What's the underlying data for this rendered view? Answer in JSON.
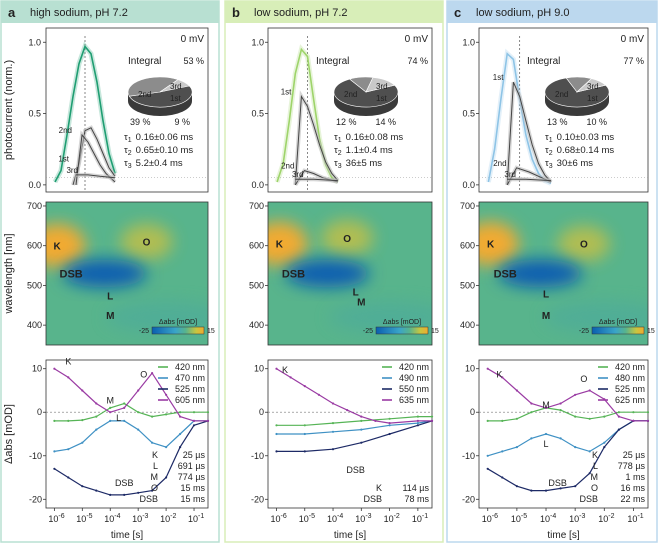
{
  "colors": {
    "panel_a_header": "#b8e0d2",
    "panel_b_header": "#d8eeb8",
    "panel_c_header": "#bcd8ee",
    "trace_a": "#1f9e72",
    "trace_b": "#9ed46a",
    "trace_c": "#8ec4e6",
    "map_blue": "#0a5fb0",
    "map_green": "#58b48c",
    "map_orange": "#f1aa30",
    "pie_dark": "#4f4f4f",
    "pie_mid": "#8c8c8c",
    "pie_light": "#c9c9c9"
  },
  "shared": {
    "top_ylabel": "photocurrent (norm.)",
    "mid_ylabel": "wavelength [nm]",
    "bot_ylabel": "Δabs [mOD]",
    "xlabel": "time [s]",
    "top_yticks": [
      "0.0",
      "0.5",
      "1.0"
    ],
    "mid_yticks": [
      "400",
      "500",
      "600",
      "700"
    ],
    "bot_yticks": [
      "-20",
      "-10",
      "0",
      "10"
    ],
    "xtick_base": "10",
    "xtick_exps": [
      "-6",
      "-5",
      "-4",
      "-3",
      "-2",
      "-1"
    ],
    "voltage": "0 mV",
    "integral_label": "Integral",
    "colorbar_title": "Δabs [mOD]",
    "colorbar_min": "-25",
    "colorbar_max": "15",
    "pie_labels": {
      "first": "1st",
      "second": "2nd",
      "third": "3rd"
    }
  },
  "panels": [
    {
      "letter": "a",
      "title": "high sodium, pH 7.2",
      "integral_pct": "53 %",
      "pct_second": "39 %",
      "pct_first": "9 %",
      "pie": {
        "third": 0.53,
        "second": 0.39,
        "first": 0.09
      },
      "tau_lines": [
        {
          "sym": "τ",
          "sub": "1",
          "val": "0.16±0.06 ms"
        },
        {
          "sym": "τ",
          "sub": "2",
          "val": "0.65±0.10 ms"
        },
        {
          "sym": "τ",
          "sub": "3",
          "val": "5.2±0.4 ms"
        }
      ],
      "intermediates": [
        {
          "label": "K",
          "lambda": 600,
          "logt": -5.9
        },
        {
          "label": "O",
          "lambda": 610,
          "logt": -2.7
        },
        {
          "label": "DSB",
          "lambda": 530,
          "logt": -5.4
        },
        {
          "label": "L",
          "lambda": 475,
          "logt": -4.0
        },
        {
          "label": "M",
          "lambda": 425,
          "logt": -4.0
        }
      ],
      "legend": [
        {
          "label": "420 nm",
          "color": "#56b456"
        },
        {
          "label": "470 nm",
          "color": "#3f91c4"
        },
        {
          "label": "525 nm",
          "color": "#1d2a66"
        },
        {
          "label": "605 nm",
          "color": "#9a3ba3"
        }
      ],
      "lifetimes": [
        {
          "name": "K",
          "value": "25 µs",
          "color": "#9a3ba3"
        },
        {
          "name": "L",
          "value": "691 µs",
          "color": "#3f91c4"
        },
        {
          "name": "M",
          "value": "774 µs",
          "color": "#56b456"
        },
        {
          "name": "O",
          "value": "15 ms",
          "color": "#9a3ba3"
        },
        {
          "name": "DSB",
          "value": "15 ms",
          "color": "#1d2a66"
        }
      ],
      "trace_labels": [
        {
          "label": "K",
          "x": -5.5,
          "y": 11
        },
        {
          "label": "M",
          "x": -4.0,
          "y": 2
        },
        {
          "label": "L",
          "x": -3.7,
          "y": -2
        },
        {
          "label": "O",
          "x": -2.8,
          "y": 8
        },
        {
          "label": "DSB",
          "x": -3.5,
          "y": -17
        }
      ]
    },
    {
      "letter": "b",
      "title": "low sodium, pH 7.2",
      "integral_pct": "74 %",
      "pct_second": "12 %",
      "pct_first": "14 %",
      "pie": {
        "third": 0.74,
        "second": 0.12,
        "first": 0.14
      },
      "tau_lines": [
        {
          "sym": "τ",
          "sub": "1",
          "val": "0.16±0.08 ms"
        },
        {
          "sym": "τ",
          "sub": "2",
          "val": "1.1±0.4 ms"
        },
        {
          "sym": "τ",
          "sub": "3",
          "val": "36±5 ms"
        }
      ],
      "intermediates": [
        {
          "label": "K",
          "lambda": 605,
          "logt": -5.9
        },
        {
          "label": "O",
          "lambda": 620,
          "logt": -3.5
        },
        {
          "label": "DSB",
          "lambda": 530,
          "logt": -5.4
        },
        {
          "label": "L",
          "lambda": 485,
          "logt": -3.2
        },
        {
          "label": "M",
          "lambda": 460,
          "logt": -3.0
        }
      ],
      "legend": [
        {
          "label": "420 nm",
          "color": "#56b456"
        },
        {
          "label": "490 nm",
          "color": "#3f91c4"
        },
        {
          "label": "550 nm",
          "color": "#1d2a66"
        },
        {
          "label": "635 nm",
          "color": "#9a3ba3"
        }
      ],
      "lifetimes": [
        {
          "name": "K",
          "value": "114 µs",
          "color": "#9a3ba3"
        },
        {
          "name": "DSB",
          "value": "78 ms",
          "color": "#1d2a66"
        }
      ],
      "trace_labels": [
        {
          "label": "K",
          "x": -5.7,
          "y": 9
        },
        {
          "label": "DSB",
          "x": -3.2,
          "y": -14
        }
      ]
    },
    {
      "letter": "c",
      "title": "low sodium, pH 9.0",
      "integral_pct": "77 %",
      "pct_second": "13 %",
      "pct_first": "10 %",
      "pie": {
        "third": 0.77,
        "second": 0.13,
        "first": 0.1
      },
      "tau_lines": [
        {
          "sym": "τ",
          "sub": "1",
          "val": "0.10±0.03 ms"
        },
        {
          "sym": "τ",
          "sub": "2",
          "val": "0.68±0.14 ms"
        },
        {
          "sym": "τ",
          "sub": "3",
          "val": "30±6 ms"
        }
      ],
      "intermediates": [
        {
          "label": "K",
          "lambda": 605,
          "logt": -5.9
        },
        {
          "label": "O",
          "lambda": 605,
          "logt": -2.7
        },
        {
          "label": "DSB",
          "lambda": 530,
          "logt": -5.4
        },
        {
          "label": "L",
          "lambda": 480,
          "logt": -4.0
        },
        {
          "label": "M",
          "lambda": 425,
          "logt": -4.0
        }
      ],
      "legend": [
        {
          "label": "420 nm",
          "color": "#56b456"
        },
        {
          "label": "480 nm",
          "color": "#3f91c4"
        },
        {
          "label": "525 nm",
          "color": "#1d2a66"
        },
        {
          "label": "625 nm",
          "color": "#9a3ba3"
        }
      ],
      "lifetimes": [
        {
          "name": "K",
          "value": "25 µs",
          "color": "#9a3ba3"
        },
        {
          "name": "L",
          "value": "778 µs",
          "color": "#3f91c4"
        },
        {
          "name": "M",
          "value": "1 ms",
          "color": "#56b456"
        },
        {
          "name": "O",
          "value": "16 ms",
          "color": "#9a3ba3"
        },
        {
          "name": "DSB",
          "value": "22 ms",
          "color": "#1d2a66"
        }
      ],
      "trace_labels": [
        {
          "label": "K",
          "x": -5.6,
          "y": 8
        },
        {
          "label": "M",
          "x": -4.0,
          "y": 1
        },
        {
          "label": "L",
          "x": -4.0,
          "y": -8
        },
        {
          "label": "O",
          "x": -2.7,
          "y": 7
        },
        {
          "label": "DSB",
          "x": -3.6,
          "y": -17
        }
      ]
    }
  ],
  "chart_data": [
    {
      "type": "line",
      "panel": "a",
      "title": "high sodium, pH 7.2",
      "xlabel": "",
      "ylabel": "photocurrent (norm.)",
      "ylim": [
        -0.05,
        1.1
      ],
      "series": [
        {
          "name": "",
          "x": [
            -0.5,
            -0.3,
            -0.1,
            0.1,
            0.3,
            0.5,
            0.7,
            0.9,
            1.1,
            1.3,
            1.5
          ],
          "y": [
            0.02,
            0.1,
            0.35,
            0.62,
            0.85,
            0.97,
            0.92,
            0.72,
            0.45,
            0.22,
            0.08
          ]
        },
        {
          "name": "2nd",
          "x": [
            0.1,
            0.3,
            0.5,
            0.7,
            0.9,
            1.1,
            1.3,
            1.5
          ],
          "y": [
            0,
            0.15,
            0.38,
            0.4,
            0.32,
            0.22,
            0.12,
            0.06
          ]
        },
        {
          "name": "1st",
          "x": [
            0.2,
            0.4,
            0.6,
            0.8,
            1.0,
            1.2,
            1.4,
            1.5
          ],
          "y": [
            0,
            0.35,
            0.3,
            0.22,
            0.14,
            0.08,
            0.04,
            0.02
          ]
        },
        {
          "name": "3rd",
          "x": [
            0.2,
            0.6,
            1.0,
            1.5
          ],
          "y": [
            0.07,
            0.07,
            0.06,
            0.05
          ]
        }
      ]
    },
    {
      "type": "line",
      "panel": "b",
      "title": "low sodium, pH 7.2",
      "xlabel": "",
      "ylabel": "photocurrent (norm.)",
      "ylim": [
        -0.05,
        1.1
      ],
      "series": [
        {
          "name": "",
          "x": [
            -0.5,
            -0.3,
            -0.1,
            0.1,
            0.3,
            0.5,
            0.7,
            0.9,
            1.1,
            1.3,
            1.5
          ],
          "y": [
            0.02,
            0.15,
            0.45,
            0.78,
            0.95,
            0.9,
            0.6,
            0.32,
            0.14,
            0.05,
            0.02
          ]
        },
        {
          "name": "1st",
          "x": [
            0.1,
            0.3,
            0.5,
            0.7,
            0.9,
            1.1,
            1.3,
            1.5
          ],
          "y": [
            0,
            0.62,
            0.55,
            0.42,
            0.28,
            0.16,
            0.08,
            0.03
          ]
        },
        {
          "name": "2nd",
          "x": [
            0.1,
            0.4,
            0.7,
            1.0,
            1.5
          ],
          "y": [
            0,
            0.1,
            0.08,
            0.05,
            0.02
          ]
        },
        {
          "name": "3rd",
          "x": [
            0.1,
            0.7,
            1.5
          ],
          "y": [
            0.04,
            0.04,
            0.03
          ]
        }
      ]
    },
    {
      "type": "line",
      "panel": "c",
      "title": "low sodium, pH 9.0",
      "xlabel": "",
      "ylabel": "photocurrent (norm.)",
      "ylim": [
        -0.05,
        1.1
      ],
      "series": [
        {
          "name": "",
          "x": [
            -0.5,
            -0.3,
            -0.1,
            0.1,
            0.3,
            0.5,
            0.7,
            0.9,
            1.1,
            1.3,
            1.5
          ],
          "y": [
            0.02,
            0.25,
            0.6,
            0.92,
            0.88,
            0.6,
            0.35,
            0.18,
            0.08,
            0.03,
            0.01
          ]
        },
        {
          "name": "1st",
          "x": [
            0.1,
            0.3,
            0.5,
            0.7,
            0.9,
            1.1,
            1.3,
            1.5
          ],
          "y": [
            0,
            0.72,
            0.62,
            0.45,
            0.28,
            0.15,
            0.07,
            0.02
          ]
        },
        {
          "name": "2nd",
          "x": [
            0.1,
            0.4,
            0.8,
            1.2,
            1.5
          ],
          "y": [
            0,
            0.12,
            0.09,
            0.05,
            0.02
          ]
        },
        {
          "name": "3rd",
          "x": [
            0.1,
            0.7,
            1.5
          ],
          "y": [
            0.04,
            0.04,
            0.03
          ]
        }
      ]
    },
    {
      "type": "heatmap",
      "panel": "a",
      "ylabel": "wavelength [nm]",
      "ylim": [
        350,
        710
      ],
      "xlim": [
        -6.3,
        -0.5
      ],
      "colorbar": {
        "min": -25,
        "max": 15
      }
    },
    {
      "type": "heatmap",
      "panel": "b",
      "ylabel": "wavelength [nm]",
      "ylim": [
        350,
        710
      ],
      "xlim": [
        -6.3,
        -0.5
      ],
      "colorbar": {
        "min": -25,
        "max": 15
      }
    },
    {
      "type": "heatmap",
      "panel": "c",
      "ylabel": "wavelength [nm]",
      "ylim": [
        350,
        710
      ],
      "xlim": [
        -6.3,
        -0.5
      ],
      "colorbar": {
        "min": -25,
        "max": 15
      }
    },
    {
      "type": "scatter",
      "panel": "a",
      "xlabel": "time [s]",
      "ylabel": "Δabs [mOD]",
      "xlim": [
        -6.3,
        -0.5
      ],
      "ylim": [
        -22,
        12
      ],
      "series": [
        {
          "name": "420 nm",
          "x": [
            -6,
            -5.5,
            -5,
            -4.5,
            -4,
            -3.5,
            -3,
            -2.5,
            -2,
            -1.5,
            -1,
            -0.5
          ],
          "y": [
            -2,
            -2,
            -1.8,
            -1,
            1,
            2,
            0,
            -1,
            -0.5,
            0,
            0,
            0
          ]
        },
        {
          "name": "470 nm",
          "x": [
            -6,
            -5.5,
            -5,
            -4.5,
            -4,
            -3.5,
            -3,
            -2.5,
            -2,
            -1.5,
            -1,
            -0.5
          ],
          "y": [
            -9,
            -8.5,
            -7,
            -4,
            -2,
            -2,
            -4,
            -7,
            -8,
            -5,
            -2,
            -2
          ]
        },
        {
          "name": "525 nm",
          "x": [
            -6,
            -5.5,
            -5,
            -4.5,
            -4,
            -3.5,
            -3,
            -2.5,
            -2,
            -1.5,
            -1,
            -0.5
          ],
          "y": [
            -13,
            -15,
            -17,
            -18,
            -19,
            -19,
            -18.5,
            -18,
            -15,
            -8,
            -3,
            -2
          ]
        },
        {
          "name": "605 nm",
          "x": [
            -6,
            -5.5,
            -5,
            -4.5,
            -4,
            -3.5,
            -3,
            -2.5,
            -2,
            -1.5,
            -1,
            -0.5
          ],
          "y": [
            10,
            8,
            5,
            2,
            0,
            1,
            5,
            9,
            4,
            -1,
            -2,
            -2
          ]
        }
      ]
    },
    {
      "type": "scatter",
      "panel": "b",
      "xlabel": "time [s]",
      "ylabel": "Δabs [mOD]",
      "xlim": [
        -6.3,
        -0.5
      ],
      "ylim": [
        -22,
        12
      ],
      "series": [
        {
          "name": "420 nm",
          "x": [
            -6,
            -5,
            -4,
            -3,
            -2,
            -1,
            -0.5
          ],
          "y": [
            -3,
            -3,
            -2.5,
            -2,
            -1.5,
            -1,
            -1
          ]
        },
        {
          "name": "490 nm",
          "x": [
            -6,
            -5,
            -4,
            -3,
            -2,
            -1,
            -0.5
          ],
          "y": [
            -5,
            -5,
            -4.5,
            -4,
            -3,
            -2.5,
            -2
          ]
        },
        {
          "name": "550 nm",
          "x": [
            -6,
            -5,
            -4,
            -3,
            -2,
            -1,
            -0.5
          ],
          "y": [
            -9,
            -9,
            -8.5,
            -7,
            -5,
            -3,
            -2
          ]
        },
        {
          "name": "635 nm",
          "x": [
            -6,
            -5.5,
            -5,
            -4.5,
            -4,
            -3.5,
            -3,
            -2.5,
            -2,
            -1,
            -0.5
          ],
          "y": [
            10,
            8,
            6,
            4,
            2,
            0.5,
            -1,
            -2,
            -2.5,
            -2,
            -2
          ]
        }
      ]
    },
    {
      "type": "scatter",
      "panel": "c",
      "xlabel": "time [s]",
      "ylabel": "Δabs [mOD]",
      "xlim": [
        -6.3,
        -0.5
      ],
      "ylim": [
        -22,
        12
      ],
      "series": [
        {
          "name": "420 nm",
          "x": [
            -6,
            -5.5,
            -5,
            -4.5,
            -4,
            -3.5,
            -3,
            -2.5,
            -2,
            -1.5,
            -1,
            -0.5
          ],
          "y": [
            -2,
            -2,
            -1.5,
            0,
            1,
            0.5,
            -1,
            -1.5,
            -1,
            0,
            0,
            0
          ]
        },
        {
          "name": "480 nm",
          "x": [
            -6,
            -5.5,
            -5,
            -4.5,
            -4,
            -3.5,
            -3,
            -2.5,
            -2,
            -1.5,
            -1,
            -0.5
          ],
          "y": [
            -10,
            -9,
            -8,
            -6,
            -5,
            -6,
            -8,
            -9,
            -7,
            -4,
            -2,
            -2
          ]
        },
        {
          "name": "525 nm",
          "x": [
            -6,
            -5.5,
            -5,
            -4.5,
            -4,
            -3.5,
            -3,
            -2.5,
            -2,
            -1.5,
            -1,
            -0.5
          ],
          "y": [
            -13,
            -15,
            -17,
            -18,
            -18,
            -17.5,
            -17,
            -14,
            -8,
            -4,
            -2,
            -2
          ]
        },
        {
          "name": "625 nm",
          "x": [
            -6,
            -5.5,
            -5,
            -4.5,
            -4,
            -3.5,
            -3,
            -2.5,
            -2,
            -1.5,
            -1,
            -0.5
          ],
          "y": [
            10,
            8,
            5,
            2,
            1,
            2,
            4,
            5,
            3,
            -1,
            -2,
            -2
          ]
        }
      ]
    }
  ]
}
